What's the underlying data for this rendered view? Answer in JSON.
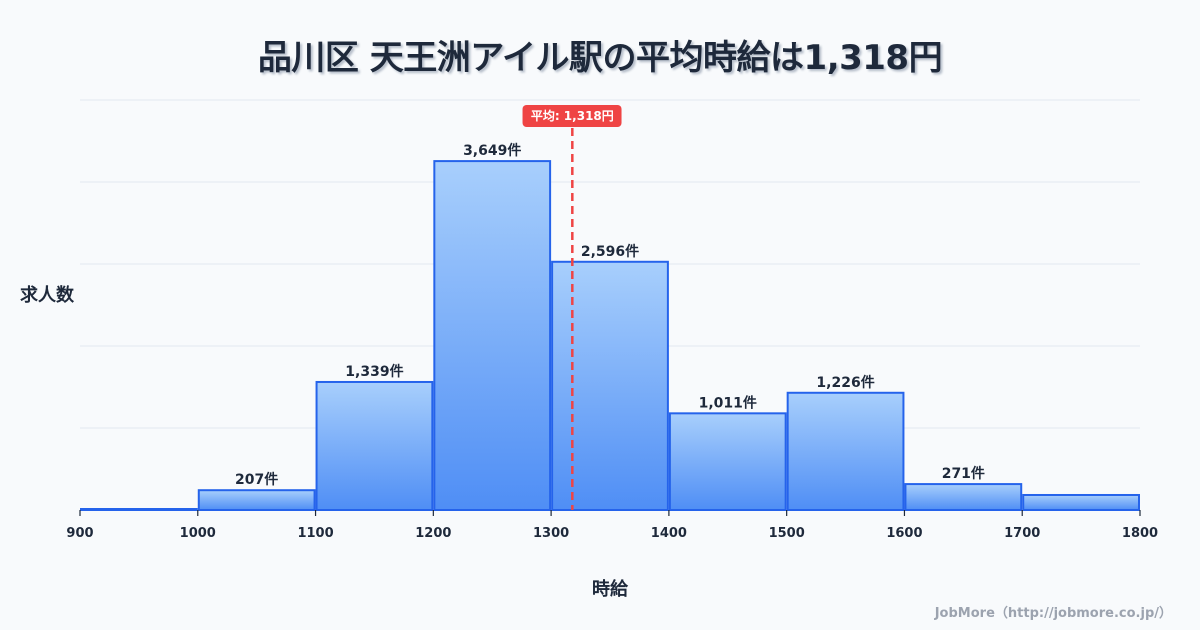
{
  "title": "品川区 天王洲アイル駅の平均時給は1,318円",
  "ylabel": "求人数",
  "xlabel": "時給",
  "credit": "JobMore（http://jobmore.co.jp/）",
  "mean_badge": "平均: 1,318円",
  "colors": {
    "bar_top": "#a8cffc",
    "bar_bottom": "#4f8ef5",
    "bar_border": "#2563eb",
    "mean_line": "#ef4444",
    "grid": "#e2e8f0",
    "text": "#1e293b"
  },
  "chart_data": {
    "type": "bar",
    "title": "品川区 天王洲アイル駅の平均時給は1,318円",
    "xlabel": "時給",
    "ylabel": "求人数",
    "bins": [
      {
        "from": 900,
        "to": 1000,
        "value": 5,
        "label": ""
      },
      {
        "from": 1000,
        "to": 1100,
        "value": 207,
        "label": "207件"
      },
      {
        "from": 1100,
        "to": 1200,
        "value": 1339,
        "label": "1,339件"
      },
      {
        "from": 1200,
        "to": 1300,
        "value": 3649,
        "label": "3,649件"
      },
      {
        "from": 1300,
        "to": 1400,
        "value": 2596,
        "label": "2,596件"
      },
      {
        "from": 1400,
        "to": 1500,
        "value": 1011,
        "label": "1,011件"
      },
      {
        "from": 1500,
        "to": 1600,
        "value": 1226,
        "label": "1,226件"
      },
      {
        "from": 1600,
        "to": 1700,
        "value": 271,
        "label": "271件"
      },
      {
        "from": 1700,
        "to": 1800,
        "value": 157,
        "label": ""
      }
    ],
    "categories": [
      "900-1000",
      "1000-1100",
      "1100-1200",
      "1200-1300",
      "1300-1400",
      "1400-1500",
      "1500-1600",
      "1600-1700",
      "1700-1800"
    ],
    "values": [
      5,
      207,
      1339,
      3649,
      2596,
      1011,
      1226,
      271,
      157
    ],
    "x_ticks": [
      900,
      1000,
      1100,
      1200,
      1300,
      1400,
      1500,
      1600,
      1700,
      1800
    ],
    "xlim": [
      900,
      1800
    ],
    "ylim": [
      0,
      4288
    ],
    "grid": true,
    "mean": 1318,
    "mean_label": "平均: 1,318円",
    "legend": null
  }
}
